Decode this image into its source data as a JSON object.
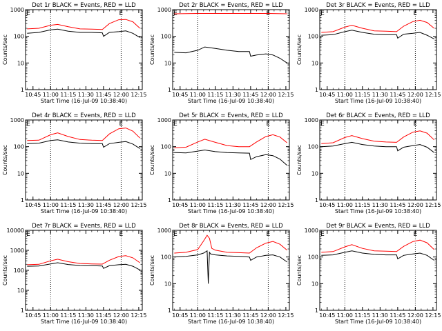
{
  "colors": {
    "events": "#000000",
    "lld": "#ff0000",
    "axes": "#000000",
    "background": "#ffffff"
  },
  "chart_data": [
    {
      "type": "line",
      "title": "Det 1r BLACK = Events, RED = LLD",
      "xlabel": "Start Time (16-Jul-09 10:38:40)",
      "ylabel": "Counts/sec",
      "log_y": true,
      "ylim": [
        1,
        1000
      ],
      "yticks": [
        "1",
        "10",
        "100",
        "1000"
      ],
      "xlim": [
        "10:38:40",
        "12:18:00"
      ],
      "xticks": [
        "10:45",
        "11:00",
        "11:15",
        "11:30",
        "11:45",
        "12:00",
        "12:15"
      ],
      "vlines": [
        "11:00",
        "12:00"
      ],
      "marks": [
        {
          "label": "E",
          "time": "10:41"
        },
        {
          "label": "E",
          "time": "12:00"
        }
      ],
      "series": [
        {
          "name": "Events",
          "color": "#000000",
          "x": [
            "10:40",
            "10:50",
            "11:00",
            "11:06",
            "11:15",
            "11:25",
            "11:35",
            "11:44",
            "11:45",
            "11:50",
            "11:58",
            "12:04",
            "12:10",
            "12:16"
          ],
          "values": [
            130,
            140,
            175,
            185,
            155,
            140,
            140,
            135,
            100,
            140,
            150,
            160,
            130,
            90
          ]
        },
        {
          "name": "LLD",
          "color": "#ff0000",
          "x": [
            "10:40",
            "10:50",
            "11:00",
            "11:06",
            "11:15",
            "11:25",
            "11:35",
            "11:44",
            "11:50",
            "11:58",
            "12:04",
            "12:10",
            "12:16"
          ],
          "values": [
            190,
            200,
            260,
            280,
            230,
            190,
            185,
            180,
            300,
            420,
            430,
            350,
            200
          ]
        }
      ]
    },
    {
      "type": "line",
      "title": "Det 2r BLACK = Events, RED = LLD",
      "xlabel": "Start Time (16-Jul-09 10:38:40)",
      "ylabel": "Counts/sec",
      "log_y": true,
      "ylim": [
        1,
        1000
      ],
      "yticks": [
        "1",
        "10",
        "100",
        "1000"
      ],
      "xlim": [
        "10:38:40",
        "12:18:00"
      ],
      "xticks": [
        "10:45",
        "11:00",
        "11:15",
        "11:30",
        "11:45",
        "12:00",
        "12:15"
      ],
      "vlines": [
        "11:00",
        "12:00"
      ],
      "marks": [
        {
          "label": "E",
          "time": "10:41"
        },
        {
          "label": "E",
          "time": "12:00"
        }
      ],
      "series": [
        {
          "name": "Events",
          "color": "#000000",
          "x": [
            "10:40",
            "10:50",
            "11:00",
            "11:06",
            "11:15",
            "11:25",
            "11:35",
            "11:44",
            "11:45",
            "11:50",
            "11:58",
            "12:04",
            "12:10",
            "12:16"
          ],
          "values": [
            25,
            24,
            30,
            40,
            35,
            30,
            27,
            27,
            18,
            20,
            22,
            20,
            15,
            10
          ]
        },
        {
          "name": "LLD",
          "color": "#ff0000",
          "x": [
            "10:40",
            "10:50",
            "11:00",
            "11:15",
            "11:30",
            "11:45",
            "12:00",
            "12:16"
          ],
          "values": [
            700,
            710,
            720,
            720,
            720,
            720,
            720,
            700
          ]
        }
      ]
    },
    {
      "type": "line",
      "title": "Det 3r BLACK = Events, RED = LLD",
      "xlabel": "Start Time (16-Jul-09 10:38:40)",
      "ylabel": "Counts/sec",
      "log_y": true,
      "ylim": [
        1,
        1000
      ],
      "yticks": [
        "1",
        "10",
        "100",
        "1000"
      ],
      "xlim": [
        "10:38:40",
        "12:18:00"
      ],
      "xticks": [
        "10:45",
        "11:00",
        "11:15",
        "11:30",
        "11:45",
        "12:00",
        "12:15"
      ],
      "vlines": [
        "11:00",
        "12:00"
      ],
      "marks": [
        {
          "label": "E",
          "time": "10:41"
        },
        {
          "label": "E",
          "time": "12:00"
        }
      ],
      "series": [
        {
          "name": "Events",
          "color": "#000000",
          "x": [
            "10:40",
            "10:50",
            "11:00",
            "11:06",
            "11:15",
            "11:25",
            "11:35",
            "11:44",
            "11:45",
            "11:50",
            "11:58",
            "12:04",
            "12:10",
            "12:16"
          ],
          "values": [
            110,
            115,
            150,
            170,
            140,
            120,
            115,
            115,
            85,
            120,
            130,
            140,
            110,
            80
          ]
        },
        {
          "name": "LLD",
          "color": "#ff0000",
          "x": [
            "10:40",
            "10:50",
            "11:00",
            "11:06",
            "11:15",
            "11:25",
            "11:35",
            "11:44",
            "11:50",
            "11:58",
            "12:04",
            "12:10",
            "12:16"
          ],
          "values": [
            140,
            150,
            220,
            260,
            200,
            160,
            155,
            150,
            240,
            360,
            400,
            330,
            200
          ]
        }
      ]
    },
    {
      "type": "line",
      "title": "Det 4r BLACK = Events, RED = LLD",
      "xlabel": "Start Time (16-Jul-09 10:38:40)",
      "ylabel": "Counts/sec",
      "log_y": true,
      "ylim": [
        1,
        1000
      ],
      "yticks": [
        "1",
        "10",
        "100",
        "1000"
      ],
      "xlim": [
        "10:38:40",
        "12:18:00"
      ],
      "xticks": [
        "10:45",
        "11:00",
        "11:15",
        "11:30",
        "11:45",
        "12:00",
        "12:15"
      ],
      "vlines": [
        "11:00",
        "12:00"
      ],
      "marks": [
        {
          "label": "E",
          "time": "10:41"
        },
        {
          "label": "E",
          "time": "12:00"
        }
      ],
      "series": [
        {
          "name": "Events",
          "color": "#000000",
          "x": [
            "10:40",
            "10:50",
            "11:00",
            "11:06",
            "11:15",
            "11:25",
            "11:35",
            "11:44",
            "11:45",
            "11:50",
            "11:58",
            "12:04",
            "12:10",
            "12:16"
          ],
          "values": [
            130,
            135,
            170,
            180,
            150,
            135,
            130,
            130,
            95,
            130,
            145,
            155,
            125,
            85
          ]
        },
        {
          "name": "LLD",
          "color": "#ff0000",
          "x": [
            "10:40",
            "10:50",
            "11:00",
            "11:06",
            "11:15",
            "11:25",
            "11:35",
            "11:44",
            "11:50",
            "11:58",
            "12:04",
            "12:10",
            "12:16"
          ],
          "values": [
            170,
            175,
            280,
            330,
            240,
            185,
            175,
            170,
            300,
            470,
            500,
            380,
            210
          ]
        }
      ]
    },
    {
      "type": "line",
      "title": "Det 5r BLACK = Events, RED = LLD",
      "xlabel": "Start Time (16-Jul-09 10:38:40)",
      "ylabel": "Counts/sec",
      "log_y": true,
      "ylim": [
        1,
        1000
      ],
      "yticks": [
        "1",
        "10",
        "100",
        "1000"
      ],
      "xlim": [
        "10:38:40",
        "12:18:00"
      ],
      "xticks": [
        "10:45",
        "11:00",
        "11:15",
        "11:30",
        "11:45",
        "12:00",
        "12:15"
      ],
      "vlines": [
        "11:00",
        "12:00"
      ],
      "marks": [
        {
          "label": "E",
          "time": "10:41"
        },
        {
          "label": "E",
          "time": "12:00"
        }
      ],
      "series": [
        {
          "name": "Events",
          "color": "#000000",
          "x": [
            "10:40",
            "10:50",
            "11:00",
            "11:06",
            "11:15",
            "11:25",
            "11:35",
            "11:44",
            "11:45",
            "11:50",
            "11:58",
            "12:04",
            "12:10",
            "12:16"
          ],
          "values": [
            60,
            58,
            68,
            75,
            65,
            60,
            58,
            57,
            33,
            42,
            50,
            46,
            34,
            20
          ]
        },
        {
          "name": "LLD",
          "color": "#ff0000",
          "x": [
            "10:40",
            "10:50",
            "11:00",
            "11:06",
            "11:15",
            "11:25",
            "11:35",
            "11:44",
            "11:50",
            "11:58",
            "12:04",
            "12:10",
            "12:16"
          ],
          "values": [
            90,
            95,
            150,
            190,
            145,
            110,
            100,
            100,
            150,
            240,
            280,
            230,
            140
          ]
        }
      ]
    },
    {
      "type": "line",
      "title": "Det 6r BLACK = Events, RED = LLD",
      "xlabel": "Start Time (16-Jul-09 10:38:40)",
      "ylabel": "Counts/sec",
      "log_y": true,
      "ylim": [
        1,
        1000
      ],
      "yticks": [
        "1",
        "10",
        "100",
        "1000"
      ],
      "xlim": [
        "10:38:40",
        "12:18:00"
      ],
      "xticks": [
        "10:45",
        "11:00",
        "11:15",
        "11:30",
        "11:45",
        "12:00",
        "12:15"
      ],
      "vlines": [
        "11:00",
        "12:00"
      ],
      "marks": [
        {
          "label": "E",
          "time": "10:41"
        },
        {
          "label": "E",
          "time": "12:00"
        }
      ],
      "series": [
        {
          "name": "Events",
          "color": "#000000",
          "x": [
            "10:40",
            "10:50",
            "11:00",
            "11:06",
            "11:15",
            "11:25",
            "11:35",
            "11:44",
            "11:45",
            "11:50",
            "11:58",
            "12:04",
            "12:10",
            "12:16"
          ],
          "values": [
            100,
            105,
            130,
            145,
            120,
            105,
            100,
            100,
            70,
            95,
            110,
            120,
            95,
            60
          ]
        },
        {
          "name": "LLD",
          "color": "#ff0000",
          "x": [
            "10:40",
            "10:50",
            "11:00",
            "11:06",
            "11:15",
            "11:25",
            "11:35",
            "11:44",
            "11:50",
            "11:58",
            "12:04",
            "12:10",
            "12:16"
          ],
          "values": [
            130,
            140,
            220,
            260,
            200,
            160,
            150,
            145,
            230,
            350,
            390,
            320,
            180
          ]
        }
      ]
    },
    {
      "type": "line",
      "title": "Det 7r BLACK = Events, RED = LLD",
      "xlabel": "Start Time (16-Jul-09 10:38:40)",
      "ylabel": "Counts/sec",
      "log_y": true,
      "ylim": [
        1,
        10000
      ],
      "yticks": [
        "1",
        "10",
        "100",
        "1000",
        "10000"
      ],
      "xlim": [
        "10:38:40",
        "12:18:00"
      ],
      "xticks": [
        "10:45",
        "11:00",
        "11:15",
        "11:30",
        "11:45",
        "12:00",
        "12:15"
      ],
      "vlines": [
        "11:00",
        "12:00"
      ],
      "marks": [
        {
          "label": "E",
          "time": "10:41"
        },
        {
          "label": "E",
          "time": "12:00"
        }
      ],
      "series": [
        {
          "name": "Events",
          "color": "#000000",
          "x": [
            "10:40",
            "10:50",
            "11:00",
            "11:06",
            "11:15",
            "11:25",
            "11:35",
            "11:44",
            "11:45",
            "11:50",
            "11:58",
            "12:04",
            "12:10",
            "12:16"
          ],
          "values": [
            160,
            165,
            210,
            240,
            195,
            175,
            170,
            165,
            125,
            170,
            190,
            200,
            160,
            105
          ]
        },
        {
          "name": "LLD",
          "color": "#ff0000",
          "x": [
            "10:40",
            "10:50",
            "11:00",
            "11:06",
            "11:15",
            "11:25",
            "11:35",
            "11:44",
            "11:50",
            "11:58",
            "12:04",
            "12:10",
            "12:16"
          ],
          "values": [
            190,
            200,
            300,
            360,
            270,
            220,
            210,
            205,
            320,
            490,
            540,
            420,
            240
          ]
        }
      ]
    },
    {
      "type": "line",
      "title": "Det 8r BLACK = Events, RED = LLD",
      "xlabel": "Start Time (16-Jul-09 10:38:40)",
      "ylabel": "Counts/sec",
      "log_y": true,
      "ylim": [
        1,
        1000
      ],
      "yticks": [
        "1",
        "10",
        "100",
        "1000"
      ],
      "xlim": [
        "10:38:40",
        "12:18:00"
      ],
      "xticks": [
        "10:45",
        "11:00",
        "11:15",
        "11:30",
        "11:45",
        "12:00",
        "12:15"
      ],
      "vlines": [
        "11:00",
        "12:00"
      ],
      "marks": [
        {
          "label": "E",
          "time": "10:41"
        },
        {
          "label": "E",
          "time": "12:00"
        }
      ],
      "series": [
        {
          "name": "Events",
          "color": "#000000",
          "x": [
            "10:40",
            "10:50",
            "11:00",
            "11:05",
            "11:08",
            "11:09",
            "11:10",
            "11:11",
            "11:15",
            "11:25",
            "11:35",
            "11:44",
            "11:45",
            "11:50",
            "11:58",
            "12:04",
            "12:10",
            "12:16"
          ],
          "values": [
            100,
            105,
            120,
            140,
            170,
            10,
            150,
            130,
            120,
            110,
            105,
            100,
            75,
            100,
            115,
            120,
            100,
            65
          ]
        },
        {
          "name": "LLD",
          "color": "#ff0000",
          "x": [
            "10:40",
            "10:50",
            "11:00",
            "11:05",
            "11:08",
            "11:10",
            "11:12",
            "11:15",
            "11:25",
            "11:35",
            "11:44",
            "11:50",
            "11:58",
            "12:04",
            "12:10",
            "12:16"
          ],
          "values": [
            140,
            150,
            190,
            400,
            650,
            500,
            210,
            180,
            150,
            145,
            140,
            220,
            330,
            380,
            300,
            180
          ]
        }
      ]
    },
    {
      "type": "line",
      "title": "Det 9r BLACK = Events, RED = LLD",
      "xlabel": "Start Time (16-Jul-09 10:38:40)",
      "ylabel": "Counts/sec",
      "log_y": true,
      "ylim": [
        1,
        1000
      ],
      "yticks": [
        "1",
        "10",
        "100",
        "1000"
      ],
      "xlim": [
        "10:38:40",
        "12:18:00"
      ],
      "xticks": [
        "10:45",
        "11:00",
        "11:15",
        "11:30",
        "11:45",
        "12:00",
        "12:15"
      ],
      "vlines": [
        "11:00",
        "12:00"
      ],
      "marks": [
        {
          "label": "E",
          "time": "10:41"
        },
        {
          "label": "E",
          "time": "12:00"
        }
      ],
      "series": [
        {
          "name": "Events",
          "color": "#000000",
          "x": [
            "10:40",
            "10:50",
            "11:00",
            "11:06",
            "11:15",
            "11:25",
            "11:35",
            "11:44",
            "11:45",
            "11:50",
            "11:58",
            "12:04",
            "12:10",
            "12:16"
          ],
          "values": [
            115,
            120,
            150,
            170,
            140,
            125,
            120,
            120,
            85,
            115,
            130,
            140,
            115,
            75
          ]
        },
        {
          "name": "LLD",
          "color": "#ff0000",
          "x": [
            "10:40",
            "10:50",
            "11:00",
            "11:06",
            "11:15",
            "11:25",
            "11:35",
            "11:44",
            "11:50",
            "11:58",
            "12:04",
            "12:10",
            "12:16"
          ],
          "values": [
            150,
            160,
            240,
            290,
            210,
            170,
            165,
            160,
            250,
            380,
            430,
            340,
            190
          ]
        }
      ]
    }
  ]
}
